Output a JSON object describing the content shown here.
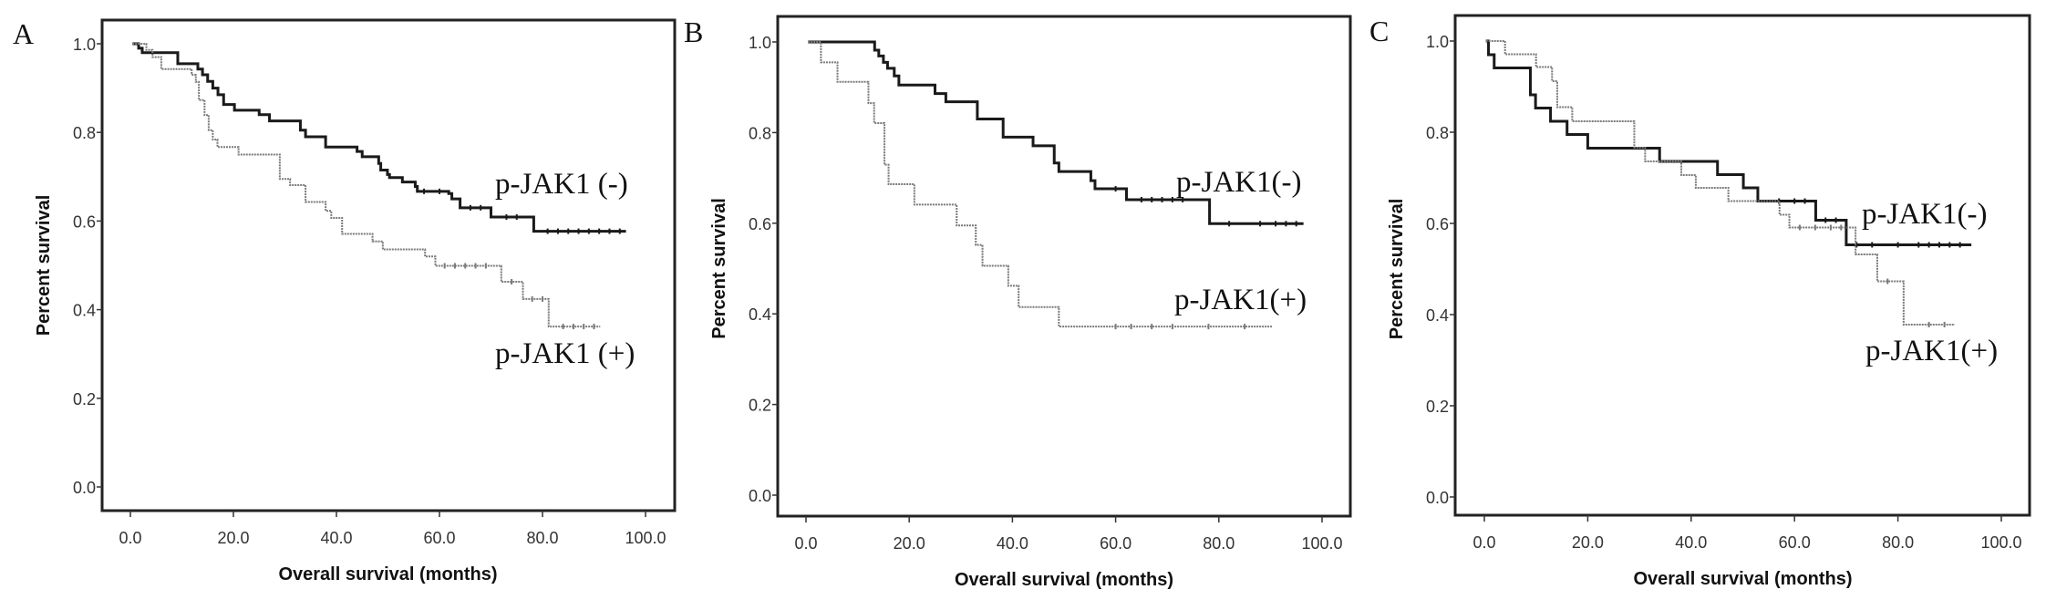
{
  "chart_data": [
    {
      "type": "line",
      "panel_label": "A",
      "title": "",
      "xlabel": "Overall survival (months)",
      "ylabel": "Percent survival",
      "xlim": [
        -5,
        105
      ],
      "ylim": [
        -0.05,
        1.05
      ],
      "x_ticks": [
        "0.0",
        "20.0",
        "40.0",
        "60.0",
        "80.0",
        "100.0"
      ],
      "x_tick_values": [
        0,
        20,
        40,
        60,
        80,
        100
      ],
      "y_ticks": [
        "0.0",
        "0.2",
        "0.4",
        "0.6",
        "0.8",
        "1.0"
      ],
      "y_tick_values": [
        0,
        0.2,
        0.4,
        0.6,
        0.8,
        1.0
      ],
      "grid": false,
      "series": [
        {
          "name": "p-JAK1 (-)",
          "color": "#1a1a1a",
          "steps": [
            [
              0.4,
              1
            ],
            [
              1.6,
              0.99
            ],
            [
              2.3,
              0.98
            ],
            [
              9.2,
              0.955
            ],
            [
              13.1,
              0.943
            ],
            [
              14,
              0.93
            ],
            [
              15,
              0.915
            ],
            [
              16,
              0.9
            ],
            [
              17,
              0.885
            ],
            [
              18.1,
              0.863
            ],
            [
              20.2,
              0.85
            ],
            [
              25,
              0.84
            ],
            [
              27,
              0.826
            ],
            [
              33,
              0.805
            ],
            [
              34,
              0.79
            ],
            [
              37.9,
              0.767
            ],
            [
              44,
              0.757
            ],
            [
              45,
              0.745
            ],
            [
              48.2,
              0.73
            ],
            [
              48.6,
              0.715
            ],
            [
              49.9,
              0.705
            ],
            [
              50.3,
              0.698
            ],
            [
              52.8,
              0.688
            ],
            [
              55.3,
              0.678
            ],
            [
              55.7,
              0.667
            ],
            [
              61.8,
              0.662
            ],
            [
              62.4,
              0.65
            ],
            [
              64,
              0.63
            ],
            [
              70,
              0.609
            ],
            [
              78.3,
              0.577
            ]
          ],
          "end": 96.2,
          "censored": [
            57,
            60,
            66,
            68,
            73,
            75,
            81,
            83,
            85,
            87,
            89,
            91,
            93,
            95
          ]
        },
        {
          "name": "p-JAK1 (+)",
          "color": "#7a7a7a",
          "steps": [
            [
              0.4,
              1
            ],
            [
              3.1,
              0.986
            ],
            [
              4.3,
              0.97
            ],
            [
              6,
              0.943
            ],
            [
              11.9,
              0.93
            ],
            [
              12.7,
              0.914
            ],
            [
              13.3,
              0.873
            ],
            [
              14.4,
              0.839
            ],
            [
              15.2,
              0.805
            ],
            [
              16,
              0.784
            ],
            [
              16.9,
              0.767
            ],
            [
              21,
              0.75
            ],
            [
              29,
              0.695
            ],
            [
              31,
              0.681
            ],
            [
              34,
              0.643
            ],
            [
              37.9,
              0.623
            ],
            [
              39,
              0.607
            ],
            [
              41.1,
              0.571
            ],
            [
              47,
              0.554
            ],
            [
              49,
              0.536
            ],
            [
              57.2,
              0.52
            ],
            [
              59.2,
              0.499
            ],
            [
              72,
              0.463
            ],
            [
              76.2,
              0.424
            ],
            [
              81.2,
              0.362
            ]
          ],
          "end": 91.2,
          "censored": [
            61,
            63,
            65,
            67,
            69,
            74,
            78,
            80,
            84,
            86,
            88,
            90
          ]
        }
      ]
    },
    {
      "type": "line",
      "panel_label": "B",
      "title": "",
      "xlabel": "Overall survival (months)",
      "ylabel": "Percent survival",
      "xlim": [
        -5,
        105
      ],
      "ylim": [
        -0.05,
        1.05
      ],
      "x_ticks": [
        "0.0",
        "20.0",
        "40.0",
        "60.0",
        "80.0",
        "100.0"
      ],
      "x_tick_values": [
        0,
        20,
        40,
        60,
        80,
        100
      ],
      "y_ticks": [
        "0.0",
        "0.2",
        "0.4",
        "0.6",
        "0.8",
        "1.0"
      ],
      "y_tick_values": [
        0,
        0.2,
        0.4,
        0.6,
        0.8,
        1.0
      ],
      "grid": false,
      "series": [
        {
          "name": "p-JAK1(-)",
          "color": "#1a1a1a",
          "steps": [
            [
              0.4,
              1
            ],
            [
              13.3,
              0.982
            ],
            [
              14.1,
              0.969
            ],
            [
              15,
              0.955
            ],
            [
              15.8,
              0.942
            ],
            [
              17.1,
              0.925
            ],
            [
              18,
              0.905
            ],
            [
              25,
              0.886
            ],
            [
              27.1,
              0.868
            ],
            [
              33.2,
              0.83
            ],
            [
              38.2,
              0.79
            ],
            [
              44,
              0.771
            ],
            [
              48.1,
              0.733
            ],
            [
              49,
              0.714
            ],
            [
              55.2,
              0.694
            ],
            [
              56,
              0.676
            ],
            [
              62.1,
              0.652
            ],
            [
              78.2,
              0.599
            ]
          ],
          "end": 96.4,
          "censored": [
            60,
            65,
            67,
            69,
            71,
            73,
            82,
            88,
            91,
            93,
            95
          ]
        },
        {
          "name": "p-JAK1(+)",
          "color": "#7a7a7a",
          "steps": [
            [
              0.4,
              1
            ],
            [
              2.9,
              0.955
            ],
            [
              6.1,
              0.912
            ],
            [
              12.1,
              0.865
            ],
            [
              13.2,
              0.821
            ],
            [
              15.2,
              0.729
            ],
            [
              16,
              0.686
            ],
            [
              21,
              0.641
            ],
            [
              29.2,
              0.595
            ],
            [
              32.9,
              0.552
            ],
            [
              34.2,
              0.506
            ],
            [
              39.2,
              0.462
            ],
            [
              41.2,
              0.415
            ],
            [
              49,
              0.372
            ]
          ],
          "end": 90.3,
          "censored": [
            60,
            63,
            67,
            71,
            78,
            85
          ]
        }
      ]
    },
    {
      "type": "line",
      "panel_label": "C",
      "title": "",
      "xlabel": "Overall survival (months)",
      "ylabel": "Percent survival",
      "xlim": [
        -5,
        105
      ],
      "ylim": [
        -0.05,
        1.05
      ],
      "x_ticks": [
        "0.0",
        "20.0",
        "40.0",
        "60.0",
        "80.0",
        "100.0"
      ],
      "x_tick_values": [
        0,
        20,
        40,
        60,
        80,
        100
      ],
      "y_ticks": [
        "0.0",
        "0.2",
        "0.4",
        "0.6",
        "0.8",
        "1.0"
      ],
      "y_tick_values": [
        0,
        0.2,
        0.4,
        0.6,
        0.8,
        1.0
      ],
      "grid": false,
      "series": [
        {
          "name": "p-JAK1(-)",
          "color": "#1a1a1a",
          "steps": [
            [
              0.3,
              1
            ],
            [
              0.8,
              0.97
            ],
            [
              1.9,
              0.941
            ],
            [
              8.9,
              0.882
            ],
            [
              9.9,
              0.853
            ],
            [
              12.8,
              0.824
            ],
            [
              16,
              0.795
            ],
            [
              20,
              0.765
            ],
            [
              33.9,
              0.736
            ],
            [
              45.1,
              0.707
            ],
            [
              50.1,
              0.678
            ],
            [
              52.9,
              0.649
            ],
            [
              64.1,
              0.607
            ],
            [
              70,
              0.553
            ]
          ],
          "end": 94.2,
          "censored": [
            57,
            60,
            62,
            66,
            68,
            72,
            75,
            80,
            84,
            86,
            88,
            90,
            92
          ]
        },
        {
          "name": "p-JAK1(+)",
          "color": "#7a7a7a",
          "steps": [
            [
              0.3,
              1
            ],
            [
              4,
              0.971
            ],
            [
              10,
              0.943
            ],
            [
              13.1,
              0.912
            ],
            [
              14.1,
              0.855
            ],
            [
              17,
              0.824
            ],
            [
              29,
              0.766
            ],
            [
              31.1,
              0.736
            ],
            [
              38.1,
              0.706
            ],
            [
              40.9,
              0.678
            ],
            [
              47.2,
              0.649
            ],
            [
              57.1,
              0.619
            ],
            [
              59,
              0.591
            ],
            [
              71.8,
              0.532
            ],
            [
              76,
              0.473
            ],
            [
              81.1,
              0.378
            ]
          ],
          "end": 91,
          "censored": [
            61,
            64,
            67,
            69,
            78,
            86,
            89
          ]
        }
      ]
    }
  ]
}
